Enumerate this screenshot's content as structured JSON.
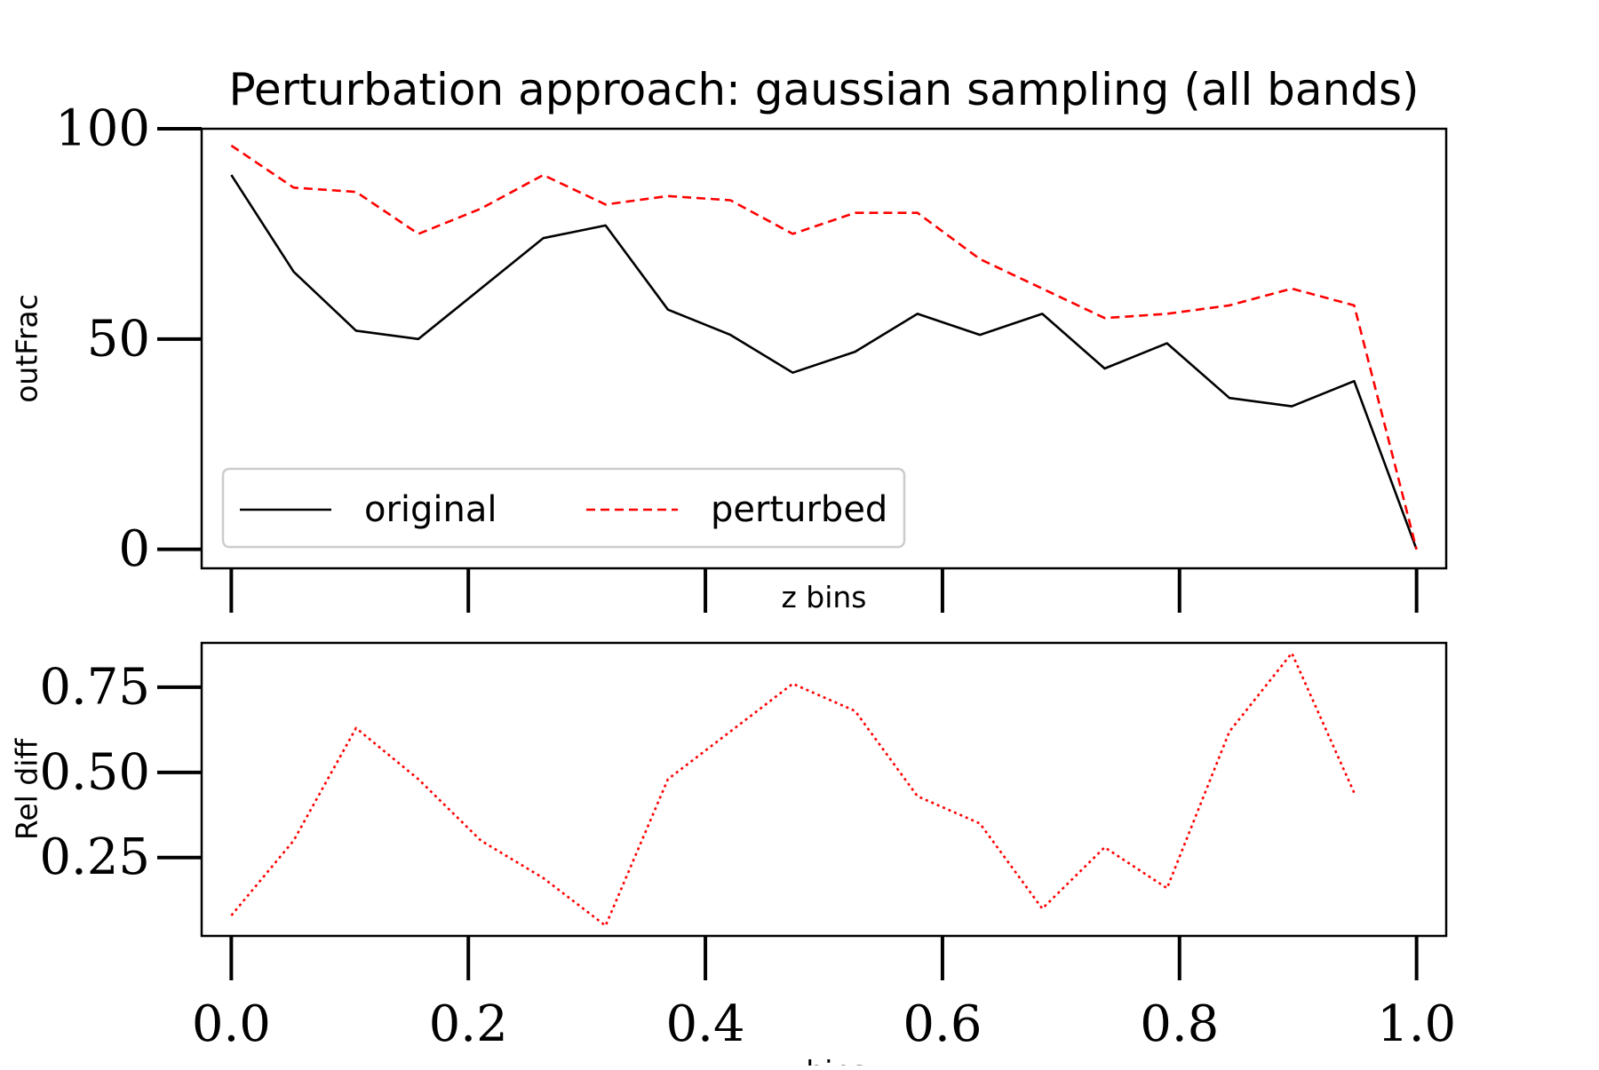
{
  "chart_data": [
    {
      "type": "line",
      "title": "Perturbation approach: gaussian sampling (all bands)",
      "xlabel": "z bins",
      "ylabel": "outFrac",
      "xlim": [
        -0.025,
        1.025
      ],
      "ylim": [
        -4.5,
        100
      ],
      "yticks": [
        0,
        50,
        100
      ],
      "xticks": [
        0.0,
        0.2,
        0.4,
        0.6,
        0.8,
        1.0
      ],
      "xtick_labels_visible": false,
      "grid": false,
      "legend": {
        "position": "lower-left",
        "columns": 2
      },
      "x": [
        0.0,
        0.05263,
        0.10526,
        0.15789,
        0.21053,
        0.26316,
        0.31579,
        0.36842,
        0.42105,
        0.47368,
        0.52632,
        0.57895,
        0.63158,
        0.68421,
        0.73684,
        0.78947,
        0.84211,
        0.89474,
        0.94737,
        1.0
      ],
      "series": [
        {
          "name": "original",
          "color": "#000000",
          "dash": "solid",
          "values": [
            89,
            66,
            52,
            50,
            62,
            74,
            77,
            57,
            51,
            42,
            47,
            56,
            51,
            56,
            43,
            49,
            36,
            34,
            40,
            0
          ]
        },
        {
          "name": "perturbed",
          "color": "#ff0000",
          "dash": "dashed",
          "values": [
            96,
            86,
            85,
            75,
            81,
            89,
            82,
            84,
            83,
            75,
            80,
            80,
            69,
            62,
            55,
            56,
            58,
            62,
            58,
            0
          ]
        }
      ]
    },
    {
      "type": "line",
      "title": "",
      "xlabel": "z bins",
      "ylabel": "Rel diff",
      "xlim": [
        -0.025,
        1.025
      ],
      "ylim": [
        0.02,
        0.88
      ],
      "yticks": [
        0.25,
        0.5,
        0.75
      ],
      "ytick_labels": [
        "0.25",
        "0.50",
        "0.75"
      ],
      "xticks": [
        0.0,
        0.2,
        0.4,
        0.6,
        0.8,
        1.0
      ],
      "xtick_labels": [
        "0.0",
        "0.2",
        "0.4",
        "0.6",
        "0.8",
        "1.0"
      ],
      "grid": false,
      "x": [
        0.0,
        0.05263,
        0.10526,
        0.15789,
        0.21053,
        0.26316,
        0.31579,
        0.36842,
        0.42105,
        0.47368,
        0.52632,
        0.57895,
        0.63158,
        0.68421,
        0.73684,
        0.78947,
        0.84211,
        0.89474,
        0.94737
      ],
      "series": [
        {
          "color": "#ff0000",
          "dash": "dotted",
          "values": [
            0.08,
            0.3,
            0.63,
            0.48,
            0.3,
            0.19,
            0.05,
            0.48,
            0.62,
            0.76,
            0.68,
            0.43,
            0.35,
            0.1,
            0.28,
            0.16,
            0.62,
            0.85,
            0.44
          ]
        }
      ]
    }
  ]
}
